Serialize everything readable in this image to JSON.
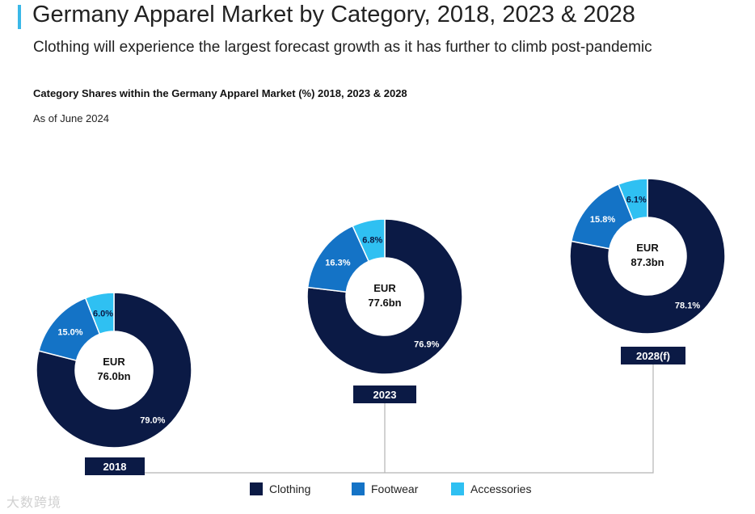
{
  "header": {
    "title": "Germany Apparel Market by Category, 2018, 2023 & 2028",
    "subtitle": "Clothing will experience the largest forecast growth as it has further to climb post-pandemic"
  },
  "chart_data": {
    "type": "pie",
    "title": "Category Shares within the Germany Apparel Market (%) 2018, 2023 & 2028",
    "subtitle": "As of June 2024",
    "categories": [
      "Clothing",
      "Footwear",
      "Accessories"
    ],
    "colors": [
      "#0b1a45",
      "#1473c6",
      "#2fc0f2"
    ],
    "donuts": [
      {
        "year": "2018",
        "total": [
          "EUR",
          "76.0bn"
        ],
        "values": [
          79.0,
          15.0,
          6.0
        ],
        "labels": [
          "79.0%",
          "15.0%",
          "6.0%"
        ]
      },
      {
        "year": "2023",
        "total": [
          "EUR",
          "77.6bn"
        ],
        "values": [
          76.9,
          16.3,
          6.8
        ],
        "labels": [
          "76.9%",
          "16.3%",
          "6.8%"
        ]
      },
      {
        "year": "2028(f)",
        "total": [
          "EUR",
          "87.3bn"
        ],
        "values": [
          78.1,
          15.8,
          6.1
        ],
        "labels": [
          "78.1%",
          "15.8%",
          "6.1%"
        ]
      }
    ]
  },
  "watermark": "大数跨境"
}
